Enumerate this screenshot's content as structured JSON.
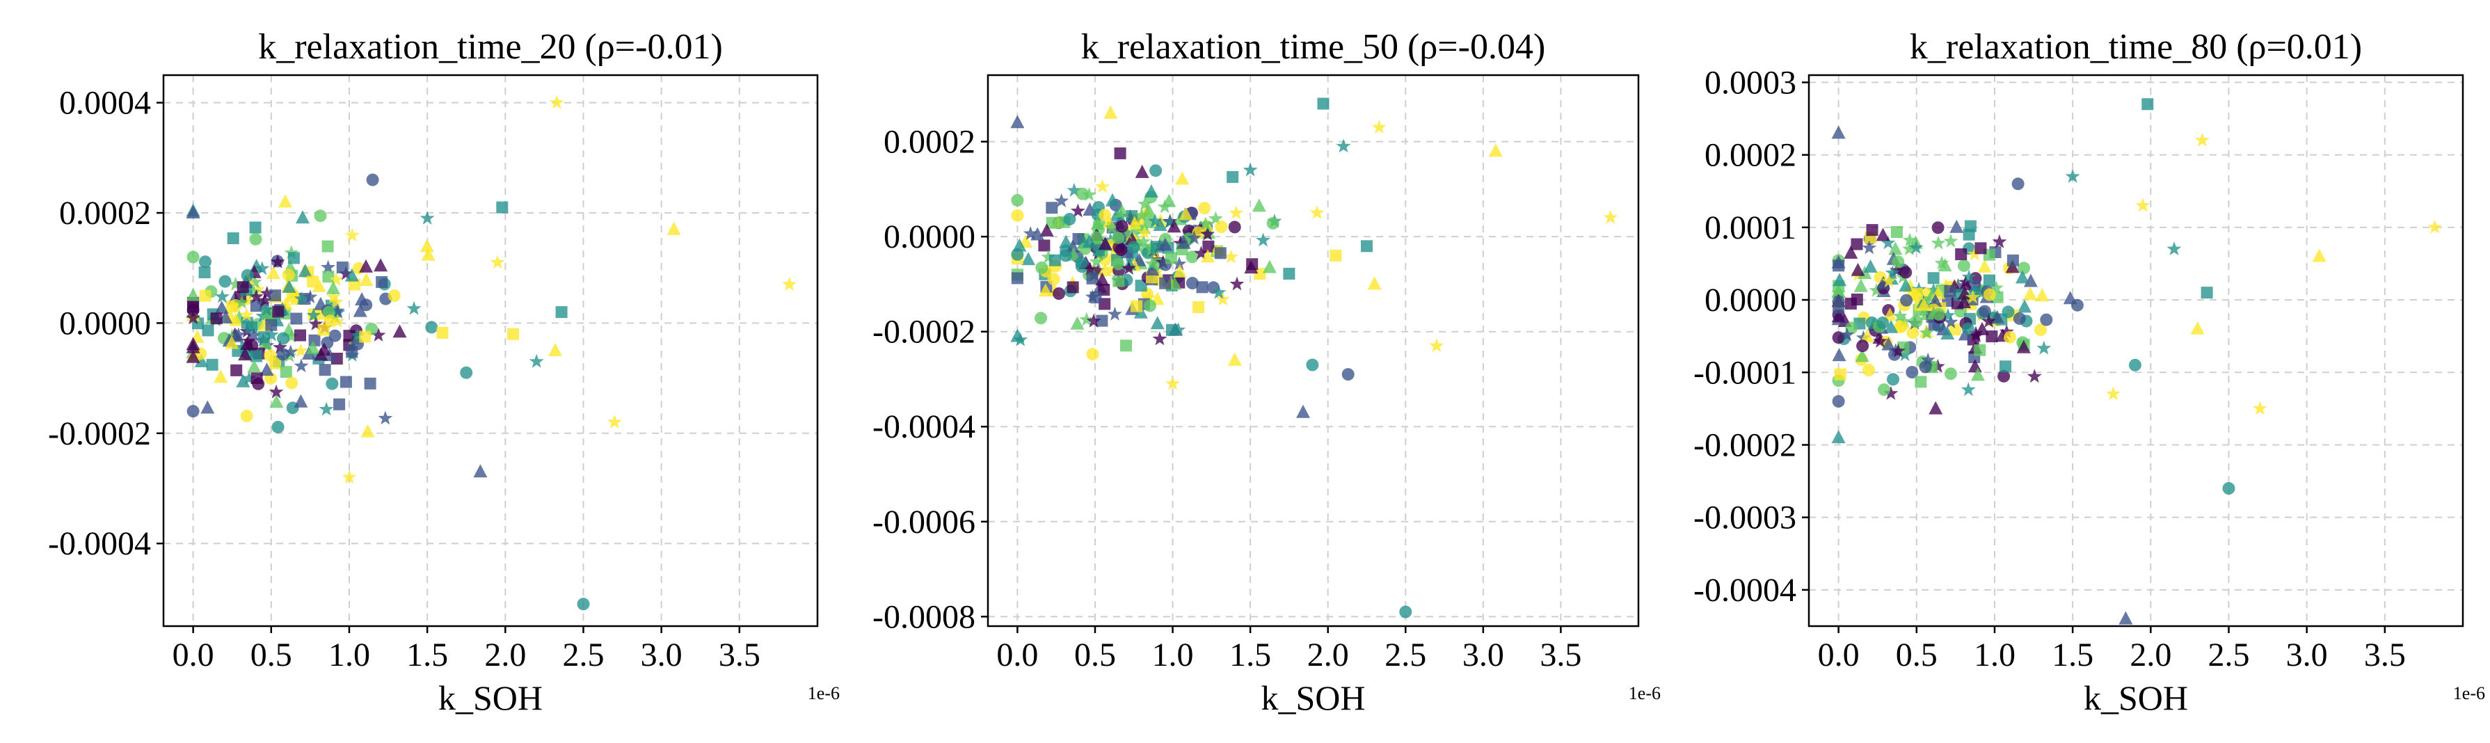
{
  "figure": {
    "panels": [
      {
        "title": "k_relaxation_time_20 (ρ=-0.01)",
        "xlabel": "k_SOH",
        "x_exponent_label": "1e-6"
      },
      {
        "title": "k_relaxation_time_50 (ρ=-0.04)",
        "xlabel": "k_SOH",
        "x_exponent_label": "1e-6"
      },
      {
        "title": "k_relaxation_time_80 (ρ=0.01)",
        "xlabel": "k_SOH",
        "x_exponent_label": "1e-6"
      }
    ]
  },
  "chart_data": [
    {
      "type": "scatter",
      "title": "k_relaxation_time_20 (ρ=-0.01)",
      "xlabel": "k_SOH",
      "x_scale_label": "1e-6",
      "xlim": [
        -0.19,
        4.0
      ],
      "ylim": [
        -0.00055,
        0.00045
      ],
      "xticks": [
        0.0,
        0.5,
        1.0,
        1.5,
        2.0,
        2.5,
        3.0,
        3.5
      ],
      "xtick_labels": [
        "0.0",
        "0.5",
        "1.0",
        "1.5",
        "2.0",
        "2.5",
        "3.0",
        "3.5"
      ],
      "yticks": [
        0.0004,
        0.0002,
        0.0,
        -0.0002,
        -0.0004
      ],
      "ytick_labels": [
        "0.0004",
        "0.0002",
        "0.0000",
        "-0.0002",
        "-0.0004"
      ],
      "grid": true,
      "markers": [
        "circle",
        "square",
        "triangle",
        "star"
      ],
      "colors": [
        "#440154",
        "#3b528b",
        "#21918c",
        "#5ec962",
        "#fde725"
      ],
      "outliers": [
        {
          "x": 2.33,
          "y": 0.0004,
          "marker": "star",
          "color": "#fde725"
        },
        {
          "x": 3.08,
          "y": 0.00017,
          "marker": "triangle",
          "color": "#fde725"
        },
        {
          "x": 3.82,
          "y": 7e-05,
          "marker": "star",
          "color": "#fde725"
        },
        {
          "x": 2.7,
          "y": -0.00018,
          "marker": "star",
          "color": "#fde725"
        },
        {
          "x": 2.5,
          "y": -0.00051,
          "marker": "circle",
          "color": "#21918c"
        },
        {
          "x": 1.0,
          "y": -0.00028,
          "marker": "star",
          "color": "#fde725"
        },
        {
          "x": 1.84,
          "y": -0.00027,
          "marker": "triangle",
          "color": "#3b528b"
        },
        {
          "x": 0.0,
          "y": 0.0002,
          "marker": "triangle",
          "color": "#3b528b"
        },
        {
          "x": 1.15,
          "y": 0.00026,
          "marker": "circle",
          "color": "#3b528b"
        },
        {
          "x": 1.98,
          "y": 0.00021,
          "marker": "square",
          "color": "#21918c"
        },
        {
          "x": 1.5,
          "y": 0.00019,
          "marker": "star",
          "color": "#21918c"
        },
        {
          "x": 0.59,
          "y": 0.00022,
          "marker": "triangle",
          "color": "#fde725"
        },
        {
          "x": 0.0,
          "y": -0.00016,
          "marker": "circle",
          "color": "#3b528b"
        },
        {
          "x": 2.2,
          "y": -7e-05,
          "marker": "star",
          "color": "#21918c"
        },
        {
          "x": 2.32,
          "y": -5e-05,
          "marker": "triangle",
          "color": "#fde725"
        },
        {
          "x": 1.95,
          "y": 0.00011,
          "marker": "star",
          "color": "#fde725"
        },
        {
          "x": 2.36,
          "y": 2e-05,
          "marker": "square",
          "color": "#21918c"
        },
        {
          "x": 2.05,
          "y": -2e-05,
          "marker": "square",
          "color": "#fde725"
        },
        {
          "x": 1.75,
          "y": -9e-05,
          "marker": "circle",
          "color": "#21918c"
        }
      ],
      "cluster": {
        "x_center": 0.62,
        "x_spread": 0.38,
        "y_center": 0.0,
        "y_spread": 7e-05,
        "count": 230,
        "seed": 11
      }
    },
    {
      "type": "scatter",
      "title": "k_relaxation_time_50 (ρ=-0.04)",
      "xlabel": "k_SOH",
      "x_scale_label": "1e-6",
      "xlim": [
        -0.19,
        4.0
      ],
      "ylim": [
        -0.00082,
        0.00034
      ],
      "xticks": [
        0.0,
        0.5,
        1.0,
        1.5,
        2.0,
        2.5,
        3.0,
        3.5
      ],
      "xtick_labels": [
        "0.0",
        "0.5",
        "1.0",
        "1.5",
        "2.0",
        "2.5",
        "3.0",
        "3.5"
      ],
      "yticks": [
        0.0002,
        0.0,
        -0.0002,
        -0.0004,
        -0.0006,
        -0.0008
      ],
      "ytick_labels": [
        "0.0002",
        "0.0000",
        "-0.0002",
        "-0.0004",
        "-0.0006",
        "-0.0008"
      ],
      "grid": true,
      "markers": [
        "circle",
        "square",
        "triangle",
        "star"
      ],
      "colors": [
        "#440154",
        "#3b528b",
        "#21918c",
        "#5ec962",
        "#fde725"
      ],
      "outliers": [
        {
          "x": 1.97,
          "y": 0.00028,
          "marker": "square",
          "color": "#21918c"
        },
        {
          "x": 3.08,
          "y": 0.00018,
          "marker": "triangle",
          "color": "#fde725"
        },
        {
          "x": 3.82,
          "y": 4e-05,
          "marker": "star",
          "color": "#fde725"
        },
        {
          "x": 2.33,
          "y": 0.00023,
          "marker": "star",
          "color": "#fde725"
        },
        {
          "x": 0.0,
          "y": 0.00024,
          "marker": "triangle",
          "color": "#3b528b"
        },
        {
          "x": 0.6,
          "y": 0.00026,
          "marker": "triangle",
          "color": "#fde725"
        },
        {
          "x": 2.5,
          "y": -0.00079,
          "marker": "circle",
          "color": "#21918c"
        },
        {
          "x": 2.7,
          "y": -0.00023,
          "marker": "star",
          "color": "#fde725"
        },
        {
          "x": 1.84,
          "y": -0.00037,
          "marker": "triangle",
          "color": "#3b528b"
        },
        {
          "x": 2.13,
          "y": -0.00029,
          "marker": "circle",
          "color": "#3b528b"
        },
        {
          "x": 1.9,
          "y": -0.00027,
          "marker": "circle",
          "color": "#21918c"
        },
        {
          "x": 1.0,
          "y": -0.00031,
          "marker": "star",
          "color": "#fde725"
        },
        {
          "x": 0.0,
          "y": -0.00021,
          "marker": "triangle",
          "color": "#21918c"
        },
        {
          "x": 2.1,
          "y": 0.00019,
          "marker": "star",
          "color": "#21918c"
        },
        {
          "x": 2.25,
          "y": -2e-05,
          "marker": "square",
          "color": "#21918c"
        },
        {
          "x": 2.3,
          "y": -0.0001,
          "marker": "triangle",
          "color": "#fde725"
        },
        {
          "x": 2.05,
          "y": -4e-05,
          "marker": "square",
          "color": "#fde725"
        },
        {
          "x": 1.93,
          "y": 5e-05,
          "marker": "star",
          "color": "#fde725"
        },
        {
          "x": 1.5,
          "y": 0.00014,
          "marker": "star",
          "color": "#21918c"
        },
        {
          "x": 1.4,
          "y": -0.00026,
          "marker": "triangle",
          "color": "#fde725"
        }
      ],
      "cluster": {
        "x_center": 0.68,
        "x_spread": 0.4,
        "y_center": -4e-05,
        "y_spread": 7e-05,
        "count": 260,
        "seed": 23
      }
    },
    {
      "type": "scatter",
      "title": "k_relaxation_time_80 (ρ=0.01)",
      "xlabel": "k_SOH",
      "x_scale_label": "1e-6",
      "xlim": [
        -0.19,
        4.0
      ],
      "ylim": [
        -0.00045,
        0.00031
      ],
      "xticks": [
        0.0,
        0.5,
        1.0,
        1.5,
        2.0,
        2.5,
        3.0,
        3.5
      ],
      "xtick_labels": [
        "0.0",
        "0.5",
        "1.0",
        "1.5",
        "2.0",
        "2.5",
        "3.0",
        "3.5"
      ],
      "yticks": [
        0.0003,
        0.0002,
        0.0001,
        0.0,
        -0.0001,
        -0.0002,
        -0.0003,
        -0.0004
      ],
      "ytick_labels": [
        "0.0003",
        "0.0002",
        "0.0001",
        "0.0000",
        "-0.0001",
        "-0.0002",
        "-0.0003",
        "-0.0004"
      ],
      "grid": true,
      "markers": [
        "circle",
        "square",
        "triangle",
        "star"
      ],
      "colors": [
        "#440154",
        "#3b528b",
        "#21918c",
        "#5ec962",
        "#fde725"
      ],
      "outliers": [
        {
          "x": 1.98,
          "y": 0.00027,
          "marker": "square",
          "color": "#21918c"
        },
        {
          "x": 0.0,
          "y": 0.00023,
          "marker": "triangle",
          "color": "#3b528b"
        },
        {
          "x": 2.33,
          "y": 0.00022,
          "marker": "star",
          "color": "#fde725"
        },
        {
          "x": 3.82,
          "y": 0.0001,
          "marker": "star",
          "color": "#fde725"
        },
        {
          "x": 3.08,
          "y": 6e-05,
          "marker": "triangle",
          "color": "#fde725"
        },
        {
          "x": 2.7,
          "y": -0.00015,
          "marker": "star",
          "color": "#fde725"
        },
        {
          "x": 2.5,
          "y": -0.00026,
          "marker": "circle",
          "color": "#21918c"
        },
        {
          "x": 1.84,
          "y": -0.00044,
          "marker": "triangle",
          "color": "#3b528b"
        },
        {
          "x": 0.0,
          "y": -0.00019,
          "marker": "triangle",
          "color": "#21918c"
        },
        {
          "x": 1.15,
          "y": 0.00016,
          "marker": "circle",
          "color": "#3b528b"
        },
        {
          "x": 1.5,
          "y": 0.00017,
          "marker": "star",
          "color": "#21918c"
        },
        {
          "x": 2.15,
          "y": 7e-05,
          "marker": "star",
          "color": "#21918c"
        },
        {
          "x": 2.36,
          "y": 1e-05,
          "marker": "square",
          "color": "#21918c"
        },
        {
          "x": 1.95,
          "y": 0.00013,
          "marker": "star",
          "color": "#fde725"
        },
        {
          "x": 2.3,
          "y": -4e-05,
          "marker": "triangle",
          "color": "#fde725"
        },
        {
          "x": 1.76,
          "y": -0.00013,
          "marker": "star",
          "color": "#fde725"
        },
        {
          "x": 1.9,
          "y": -9e-05,
          "marker": "circle",
          "color": "#21918c"
        },
        {
          "x": 0.0,
          "y": -0.00014,
          "marker": "circle",
          "color": "#3b528b"
        }
      ],
      "cluster": {
        "x_center": 0.62,
        "x_spread": 0.38,
        "y_center": -1e-05,
        "y_spread": 5e-05,
        "count": 240,
        "seed": 37
      }
    }
  ]
}
